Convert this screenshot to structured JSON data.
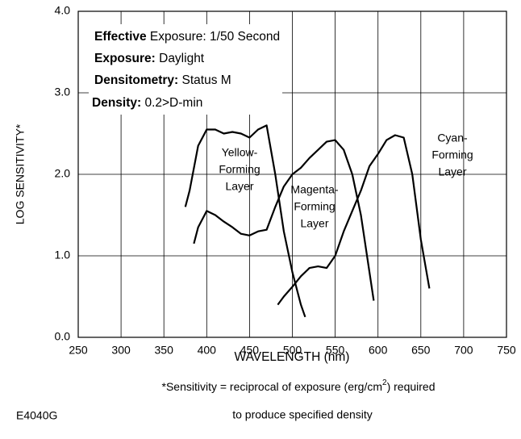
{
  "chart_data": {
    "type": "line",
    "xlabel": "WAVELENGTH (nm)",
    "ylabel": "LOG SENSITIVITY*",
    "xlim": [
      250,
      750
    ],
    "xticks": [
      250,
      300,
      350,
      400,
      450,
      500,
      550,
      600,
      650,
      700,
      750
    ],
    "ylim": [
      0,
      4
    ],
    "yticks": [
      {
        "value": 0,
        "label": "0.0"
      },
      {
        "value": 1,
        "label": "1.0"
      },
      {
        "value": 2,
        "label": "2.0"
      },
      {
        "value": 3,
        "label": "3.0"
      },
      {
        "value": 4,
        "label": "4.0"
      }
    ],
    "grid": true,
    "series": [
      {
        "color": "#000000",
        "x": [
          375,
          380,
          390,
          400,
          410,
          420,
          430,
          440,
          450,
          460,
          470,
          480,
          490,
          500,
          510,
          515
        ],
        "values": [
          1.6,
          1.8,
          2.35,
          2.55,
          2.55,
          2.5,
          2.52,
          2.5,
          2.45,
          2.55,
          2.6,
          2.0,
          1.3,
          0.8,
          0.4,
          0.25
        ]
      },
      {
        "color": "#000000",
        "x": [
          385,
          390,
          400,
          410,
          420,
          430,
          440,
          450,
          460,
          470,
          480,
          490,
          500,
          510,
          520,
          530,
          540,
          550,
          560,
          570,
          580,
          590,
          595
        ],
        "values": [
          1.15,
          1.35,
          1.55,
          1.5,
          1.42,
          1.35,
          1.27,
          1.25,
          1.3,
          1.32,
          1.6,
          1.85,
          2.0,
          2.08,
          2.2,
          2.3,
          2.4,
          2.42,
          2.3,
          2.0,
          1.5,
          0.8,
          0.45
        ]
      },
      {
        "color": "#000000",
        "x": [
          483,
          490,
          500,
          510,
          520,
          530,
          540,
          550,
          560,
          570,
          580,
          590,
          600,
          610,
          620,
          630,
          640,
          650,
          660
        ],
        "values": [
          0.4,
          0.5,
          0.62,
          0.75,
          0.85,
          0.87,
          0.85,
          1.0,
          1.3,
          1.55,
          1.8,
          2.1,
          2.25,
          2.42,
          2.48,
          2.45,
          2.0,
          1.2,
          0.6
        ]
      }
    ],
    "conditions": [
      {
        "bold": "Effective",
        "text": " Exposure: 1/50 Second"
      },
      {
        "bold": "Exposure:",
        "text": " Daylight"
      },
      {
        "bold": "Densitometry:",
        "text": " Status M"
      },
      {
        "bold": "Density:",
        "text": " 0.2>D-min"
      }
    ],
    "layer_labels": [
      [
        "Yellow-",
        "Forming",
        "Layer"
      ],
      [
        "Magenta-",
        "Forming",
        "Layer"
      ],
      [
        "Cyan-",
        "Forming",
        "Layer"
      ]
    ],
    "footnote": {
      "before": "*Sensitivity = reciprocal of exposure (erg/cm",
      "sup": "2",
      "after": ") required",
      "line2": "to produce specified density"
    },
    "code": "E4040G"
  }
}
